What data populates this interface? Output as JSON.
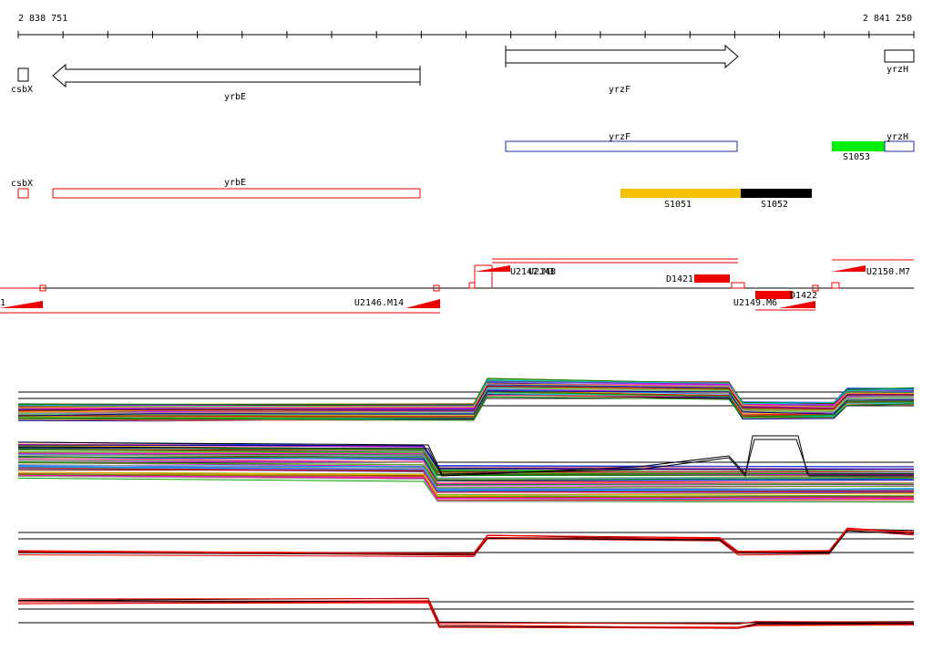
{
  "scale": {
    "start": "2 838 751",
    "end": "2 841 250"
  },
  "genes": [
    {
      "label": "csbX"
    },
    {
      "label": "yrbE"
    },
    {
      "label": "yrzF"
    },
    {
      "label": "yrzH"
    }
  ],
  "transcripts": [
    {
      "label": "yrzF"
    },
    {
      "label": "yrzH"
    },
    {
      "label": "csbX"
    },
    {
      "label": "yrbE"
    }
  ],
  "segments": [
    {
      "label": "S1053"
    },
    {
      "label": "S1051"
    },
    {
      "label": "S1052"
    }
  ],
  "probes": [
    {
      "label": "1"
    },
    {
      "label": "U2146.M14"
    },
    {
      "label": "U2147.M3"
    },
    {
      "label": "U2148"
    },
    {
      "label": "D1421"
    },
    {
      "label": "U2149.M6"
    },
    {
      "label": "D1422"
    },
    {
      "label": "U2150.M7"
    }
  ]
}
